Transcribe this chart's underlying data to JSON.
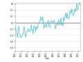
{
  "title": "",
  "xlabel": "Year",
  "ylabel": "",
  "xlim": [
    1900,
    2004
  ],
  "ylim": [
    -0.9,
    0.65
  ],
  "yticks": [
    -0.8,
    -0.6,
    -0.4,
    -0.2,
    0.0,
    0.2,
    0.4,
    0.6
  ],
  "xticks": [
    1900,
    1910,
    1920,
    1930,
    1940,
    1950,
    1960,
    1970,
    1980,
    1990,
    2000
  ],
  "line_color": "#44bbcc",
  "ref_line_color": "#777777",
  "ref_line_y": 0.0,
  "background_color": "#ffffff",
  "grid_color": "#dddddd",
  "years": [
    1900,
    1901,
    1902,
    1903,
    1904,
    1905,
    1906,
    1907,
    1908,
    1909,
    1910,
    1911,
    1912,
    1913,
    1914,
    1915,
    1916,
    1917,
    1918,
    1919,
    1920,
    1921,
    1922,
    1923,
    1924,
    1925,
    1926,
    1927,
    1928,
    1929,
    1930,
    1931,
    1932,
    1933,
    1934,
    1935,
    1936,
    1937,
    1938,
    1939,
    1940,
    1941,
    1942,
    1943,
    1944,
    1945,
    1946,
    1947,
    1948,
    1949,
    1950,
    1951,
    1952,
    1953,
    1954,
    1955,
    1956,
    1957,
    1958,
    1959,
    1960,
    1961,
    1962,
    1963,
    1964,
    1965,
    1966,
    1967,
    1968,
    1969,
    1970,
    1971,
    1972,
    1973,
    1974,
    1975,
    1976,
    1977,
    1978,
    1979,
    1980,
    1981,
    1982,
    1983,
    1984,
    1985,
    1986,
    1987,
    1988,
    1989,
    1990,
    1991,
    1992,
    1993,
    1994,
    1995,
    1996,
    1997,
    1998,
    1999,
    2000,
    2001,
    2002,
    2003,
    2004
  ],
  "anomalies": [
    -0.08,
    -0.15,
    -0.28,
    -0.37,
    -0.47,
    -0.22,
    -0.11,
    -0.35,
    -0.43,
    -0.48,
    -0.43,
    -0.44,
    -0.36,
    -0.35,
    -0.15,
    -0.14,
    -0.36,
    -0.46,
    -0.3,
    -0.27,
    -0.27,
    -0.19,
    -0.28,
    -0.26,
    -0.27,
    -0.22,
    -0.06,
    -0.24,
    -0.25,
    -0.36,
    -0.09,
    -0.14,
    -0.14,
    -0.28,
    -0.13,
    -0.19,
    -0.14,
    -0.02,
    -0.0,
    -0.02,
    0.09,
    0.2,
    0.07,
    0.09,
    0.2,
    0.02,
    -0.18,
    -0.07,
    -0.05,
    -0.07,
    -0.16,
    0.01,
    0.02,
    0.08,
    -0.13,
    -0.14,
    -0.15,
    0.05,
    0.06,
    0.03,
    -0.02,
    0.05,
    0.08,
    0.02,
    -0.2,
    -0.11,
    -0.06,
    -0.02,
    -0.07,
    0.1,
    0.04,
    -0.08,
    0.01,
    0.16,
    -0.07,
    -0.01,
    -0.1,
    0.18,
    0.07,
    0.16,
    0.26,
    0.32,
    0.14,
    0.31,
    0.16,
    0.12,
    0.18,
    0.33,
    0.4,
    0.29,
    0.44,
    0.41,
    0.23,
    0.24,
    0.31,
    0.45,
    0.35,
    0.46,
    0.63,
    0.4,
    0.42,
    0.54,
    0.63,
    0.62,
    0.57
  ]
}
